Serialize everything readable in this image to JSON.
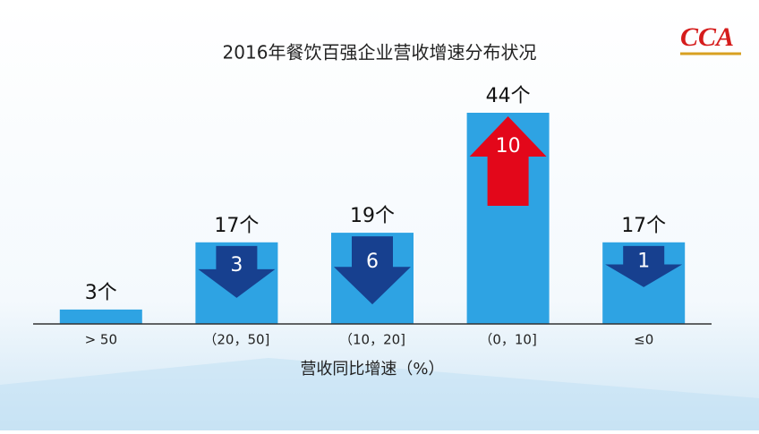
{
  "chart_data": {
    "type": "bar",
    "title": "2016年餐饮百强企业营收增速分布状况",
    "logo": "CCA",
    "x_label": "营收同比增速（%）",
    "categories": [
      "> 50",
      "（20，50]",
      "（10，20]",
      "（0，10]",
      "≤0"
    ],
    "values": [
      3,
      17,
      19,
      44,
      17
    ],
    "value_labels": [
      "3个",
      "17个",
      "19个",
      "44个",
      "17个"
    ],
    "color": "#2ea3e3",
    "ylim": [
      0,
      44
    ],
    "arrows": [
      null,
      {
        "value": 3,
        "direction": "down",
        "color": "#17408f"
      },
      {
        "value": 6,
        "direction": "down",
        "color": "#17408f"
      },
      {
        "value": 10,
        "direction": "up",
        "color": "#e3071a"
      },
      {
        "value": 1,
        "direction": "down",
        "color": "#17408f"
      }
    ]
  }
}
